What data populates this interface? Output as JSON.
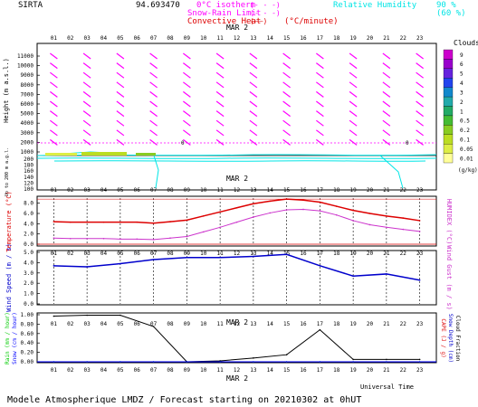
{
  "header": {
    "station": "SIRTA",
    "coords": "94.693470",
    "legend_left": [
      {
        "label": "0°C isotherm",
        "sample": "(- - -)",
        "color": "#ff00ff"
      },
      {
        "label": "Snow-Rain Limit",
        "sample": "(- - -)",
        "color": "#ff00ff"
      },
      {
        "label": "Convective Heat",
        "sample": "(——)",
        "color": "#dd0000",
        "unit": "(°C/minute)"
      }
    ],
    "legend_right": {
      "label": "Relative Humidity",
      "v1": "90 %",
      "v2": "(60 %)",
      "color": "#00e5e5"
    }
  },
  "axes": {
    "hours_top": [
      "01",
      "02",
      "03",
      "04",
      "05",
      "06",
      "07",
      "08",
      "09",
      "10",
      "11",
      "12",
      "13",
      "14",
      "15",
      "16",
      "17",
      "18",
      "19",
      "20",
      "21",
      "22",
      "23"
    ],
    "date": "MAR  2",
    "bottom_title": "Universal Time",
    "footer": "Modele Atmospherique LMDZ / Forecast starting on 20210302 at 0hUT"
  },
  "panels": {
    "height": {
      "ylabel": "Height  (m a.s.l.)",
      "ylabel2": "Up to 200 m a.g.l.",
      "upper_ticks": [
        "11000",
        "10000",
        "9000",
        "8000",
        "7000",
        "6000",
        "5000",
        "4000",
        "3000",
        "2000",
        "1000"
      ],
      "lower_ticks": [
        "200",
        "180",
        "160",
        "140",
        "120",
        "100"
      ]
    },
    "clouds": {
      "title": "Clouds",
      "unit": "(g/kg)",
      "levels": [
        "9",
        "6",
        "5",
        "4",
        "3",
        "2",
        "1",
        "0.5",
        "0.2",
        "0.1",
        "0.05",
        "0.01"
      ],
      "colors": [
        "#cc00cc",
        "#9900cc",
        "#6622dd",
        "#2244ee",
        "#1188cc",
        "#22aaaa",
        "#22aa66",
        "#44bb33",
        "#88cc22",
        "#bbdd22",
        "#ddee44",
        "#ffff99"
      ]
    },
    "temperature": {
      "ylabel": "Temperature (°C)",
      "ylabel_right": "HUMIDEX (°C)",
      "ticks": [
        "8.0",
        "6.0",
        "4.0",
        "2.0",
        "0.0"
      ]
    },
    "wind": {
      "ylabel": "Wind Speed (m / s)",
      "ylabel_right": "Wind Gust (m / s)",
      "ticks": [
        "5.0",
        "4.0",
        "3.0",
        "2.0",
        "1.0",
        "0.0"
      ]
    },
    "rain": {
      "ylabel1": "Rain (mm / hour)",
      "ylabel2": "Snow (cm / hour)",
      "ylabel_right1": "CAPE (J / g)",
      "ylabel_right2": "Snow Depth (cm)",
      "ylabel_right3": "Cloud Fraction",
      "ticks": [
        "1.00",
        "0.80",
        "0.60",
        "0.40",
        "0.20",
        "0.00"
      ]
    }
  },
  "chart_data": [
    {
      "type": "line",
      "name": "temperature",
      "x": [
        1,
        2,
        3,
        4,
        5,
        6,
        7,
        8,
        9,
        10,
        11,
        12,
        13,
        14,
        15,
        16,
        17,
        18,
        19,
        20,
        21,
        22,
        23
      ],
      "series": [
        {
          "name": "Temperature",
          "color": "#dd0000",
          "values": [
            4.4,
            4.3,
            4.3,
            4.3,
            4.3,
            4.3,
            4.1,
            4.4,
            4.7,
            5.5,
            6.3,
            7.1,
            7.9,
            8.4,
            8.8,
            8.6,
            8.2,
            7.4,
            6.6,
            6.0,
            5.5,
            5.1,
            4.6
          ]
        },
        {
          "name": "Humidex",
          "color": "#cc33cc",
          "values": [
            1.2,
            1.1,
            1.1,
            1.1,
            1.0,
            1.0,
            0.9,
            1.2,
            1.5,
            2.4,
            3.3,
            4.3,
            5.3,
            6.1,
            6.7,
            6.8,
            6.5,
            5.7,
            4.6,
            3.8,
            3.3,
            2.9,
            2.5
          ]
        }
      ],
      "ylim": [
        0,
        9
      ]
    },
    {
      "type": "line",
      "name": "wind",
      "x": [
        1,
        3,
        5,
        7,
        9,
        11,
        13,
        15,
        17,
        19,
        21,
        23
      ],
      "series": [
        {
          "name": "Wind Speed",
          "color": "#0000cc",
          "values": [
            3.7,
            3.6,
            3.9,
            4.3,
            4.5,
            4.5,
            4.6,
            4.8,
            3.7,
            2.7,
            2.9,
            2.3
          ]
        }
      ],
      "ylim": [
        0,
        5
      ]
    },
    {
      "type": "line",
      "name": "rain",
      "x": [
        1,
        3,
        5,
        7,
        9,
        11,
        13,
        15,
        17,
        19,
        21,
        23
      ],
      "series": [
        {
          "name": "Cloud Fraction",
          "color": "#000000",
          "values": [
            0.97,
            0.99,
            0.99,
            0.75,
            0.0,
            0.02,
            0.08,
            0.15,
            0.68,
            0.05,
            0.05,
            0.05
          ]
        },
        {
          "name": "Rain",
          "color": "#00cc00",
          "values": [
            0,
            0,
            0,
            0,
            0,
            0,
            0,
            0,
            0,
            0,
            0,
            0
          ]
        },
        {
          "name": "Snow",
          "color": "#0000ff",
          "values": [
            0,
            0,
            0,
            0,
            0,
            0,
            0,
            0,
            0,
            0,
            0,
            0
          ]
        }
      ],
      "ylim": [
        0,
        1
      ]
    },
    {
      "type": "scatter",
      "name": "wind-barbs",
      "levels_m": [
        11000,
        10000,
        9000,
        8000,
        7000,
        6000,
        5000,
        4000,
        3000,
        2000
      ],
      "columns": [
        1,
        3,
        5,
        7,
        9,
        11,
        13,
        15,
        17,
        19,
        21,
        23
      ]
    }
  ]
}
